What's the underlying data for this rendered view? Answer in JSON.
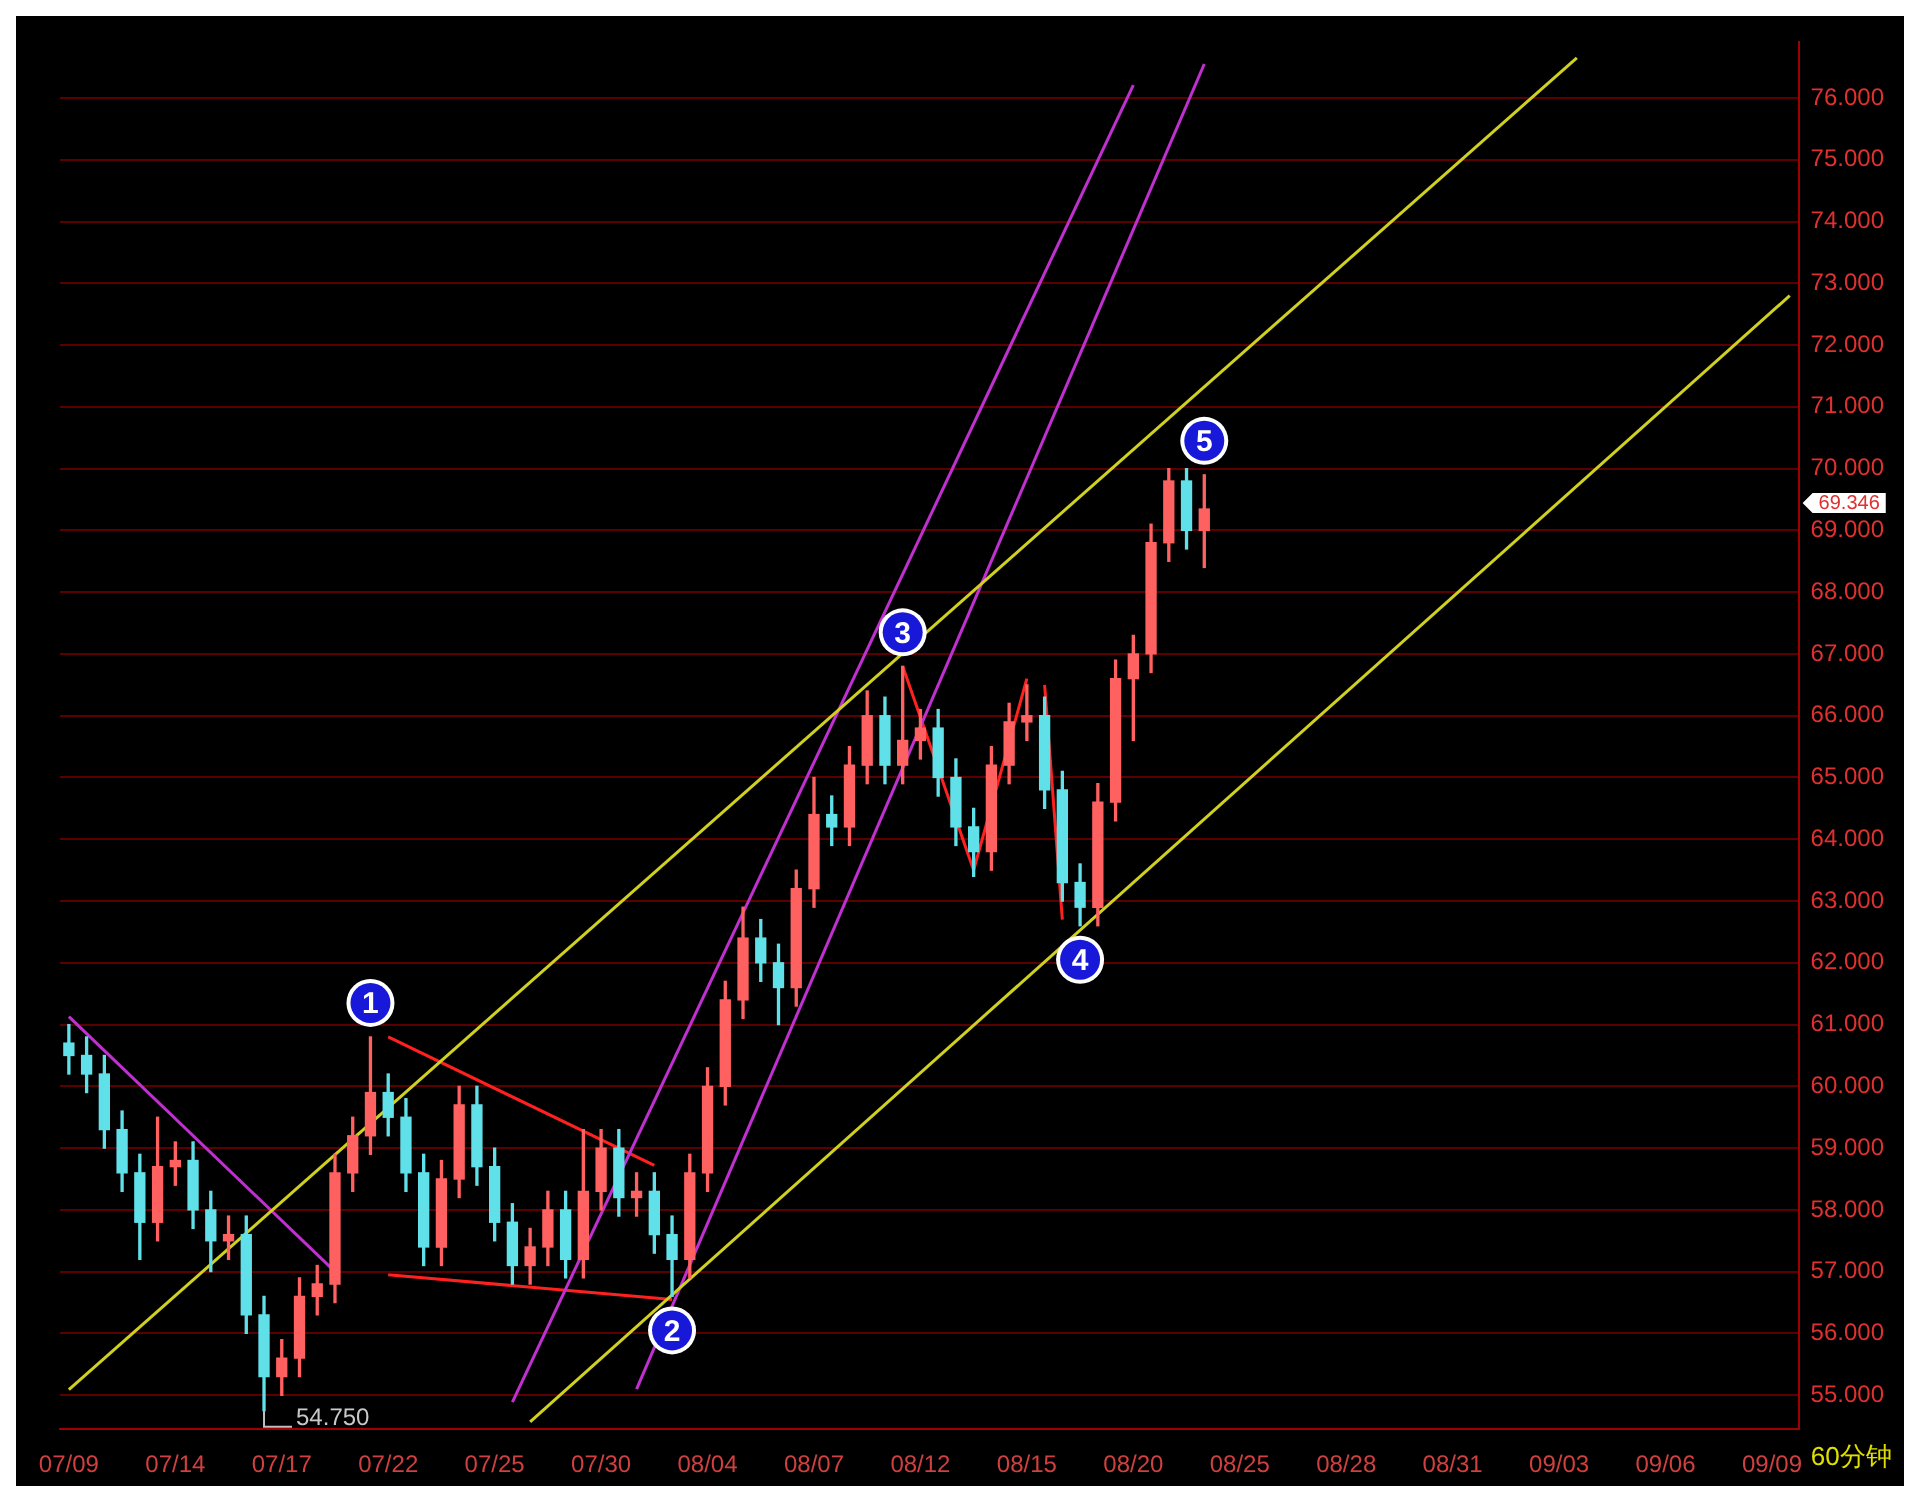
{
  "chart_data": {
    "type": "candlestick",
    "categories": [
      "07/09",
      null,
      null,
      null,
      null,
      null,
      "07/14",
      null,
      null,
      null,
      null,
      null,
      "07/17",
      null,
      null,
      null,
      null,
      null,
      "07/22",
      null,
      null,
      null,
      null,
      null,
      "07/25",
      null,
      null,
      null,
      null,
      null,
      "07/30",
      null,
      null,
      null,
      null,
      null,
      "08/04",
      null,
      null,
      null,
      null,
      null,
      "08/07",
      null,
      null,
      null,
      null,
      null,
      "08/12",
      null,
      null,
      null,
      null,
      null,
      "08/15",
      null,
      null,
      null,
      null,
      null,
      "08/20",
      null,
      null,
      null,
      null,
      null,
      "08/25",
      null,
      null,
      null,
      null,
      null,
      "08/28",
      null,
      null,
      null,
      null,
      null,
      "08/31",
      null,
      null,
      null,
      null,
      null,
      "09/03",
      null,
      null,
      null,
      null,
      null,
      "09/06",
      null,
      null,
      null,
      null,
      null,
      "09/09",
      null
    ],
    "ohlc": [
      [
        60.7,
        61.0,
        60.2,
        60.5
      ],
      [
        60.5,
        60.8,
        59.9,
        60.2
      ],
      [
        60.2,
        60.5,
        59.0,
        59.3
      ],
      [
        59.3,
        59.6,
        58.3,
        58.6
      ],
      [
        58.6,
        58.9,
        57.2,
        57.8
      ],
      [
        57.8,
        59.5,
        57.5,
        58.7
      ],
      [
        58.7,
        59.1,
        58.4,
        58.8
      ],
      [
        58.8,
        59.1,
        57.7,
        58.0
      ],
      [
        58.0,
        58.3,
        57.0,
        57.5
      ],
      [
        57.5,
        57.9,
        57.2,
        57.6
      ],
      [
        57.6,
        57.9,
        56.0,
        56.3
      ],
      [
        56.3,
        56.6,
        54.75,
        55.3
      ],
      [
        55.3,
        55.9,
        55.0,
        55.6
      ],
      [
        55.6,
        56.9,
        55.3,
        56.6
      ],
      [
        56.6,
        57.1,
        56.3,
        56.8
      ],
      [
        56.8,
        58.9,
        56.5,
        58.6
      ],
      [
        58.6,
        59.5,
        58.3,
        59.2
      ],
      [
        59.2,
        60.8,
        58.9,
        59.9
      ],
      [
        59.9,
        60.2,
        59.2,
        59.5
      ],
      [
        59.5,
        59.8,
        58.3,
        58.6
      ],
      [
        58.6,
        58.9,
        57.1,
        57.4
      ],
      [
        57.4,
        58.8,
        57.1,
        58.5
      ],
      [
        58.5,
        60.0,
        58.2,
        59.7
      ],
      [
        59.7,
        60.0,
        58.4,
        58.7
      ],
      [
        58.7,
        59.0,
        57.5,
        57.8
      ],
      [
        57.8,
        58.1,
        56.8,
        57.1
      ],
      [
        57.1,
        57.7,
        56.8,
        57.4
      ],
      [
        57.4,
        58.3,
        57.1,
        58.0
      ],
      [
        58.0,
        58.3,
        56.9,
        57.2
      ],
      [
        57.2,
        59.3,
        56.9,
        58.3
      ],
      [
        58.3,
        59.3,
        58.0,
        59.0
      ],
      [
        59.0,
        59.3,
        57.9,
        58.2
      ],
      [
        58.2,
        58.6,
        57.9,
        58.3
      ],
      [
        58.3,
        58.6,
        57.3,
        57.6
      ],
      [
        57.6,
        57.9,
        56.6,
        57.2
      ],
      [
        57.2,
        58.9,
        56.9,
        58.6
      ],
      [
        58.6,
        60.3,
        58.3,
        60.0
      ],
      [
        60.0,
        61.7,
        59.7,
        61.4
      ],
      [
        61.4,
        62.9,
        61.1,
        62.4
      ],
      [
        62.4,
        62.7,
        61.7,
        62.0
      ],
      [
        62.0,
        62.3,
        61.0,
        61.6
      ],
      [
        61.6,
        63.5,
        61.3,
        63.2
      ],
      [
        63.2,
        65.0,
        62.9,
        64.4
      ],
      [
        64.4,
        64.7,
        63.9,
        64.2
      ],
      [
        64.2,
        65.5,
        63.9,
        65.2
      ],
      [
        65.2,
        66.4,
        64.9,
        66.0
      ],
      [
        66.0,
        66.3,
        64.9,
        65.2
      ],
      [
        65.2,
        66.8,
        64.9,
        65.6
      ],
      [
        65.6,
        66.1,
        65.3,
        65.8
      ],
      [
        65.8,
        66.1,
        64.7,
        65.0
      ],
      [
        65.0,
        65.3,
        63.9,
        64.2
      ],
      [
        64.2,
        64.5,
        63.4,
        63.8
      ],
      [
        63.8,
        65.5,
        63.5,
        65.2
      ],
      [
        65.2,
        66.2,
        64.9,
        65.9
      ],
      [
        65.9,
        66.5,
        65.6,
        66.0
      ],
      [
        66.0,
        66.3,
        64.5,
        64.8
      ],
      [
        64.8,
        65.1,
        63.0,
        63.3
      ],
      [
        63.3,
        63.6,
        62.6,
        62.9
      ],
      [
        62.9,
        64.9,
        62.6,
        64.6
      ],
      [
        64.6,
        66.9,
        64.3,
        66.6
      ],
      [
        66.6,
        67.3,
        65.6,
        67.0
      ],
      [
        67.0,
        69.1,
        66.7,
        68.8
      ],
      [
        68.8,
        70.0,
        68.5,
        69.8
      ],
      [
        69.8,
        70.0,
        68.7,
        69.0
      ],
      [
        69.0,
        69.9,
        68.4,
        69.346
      ],
      null,
      null,
      null,
      null,
      null,
      null,
      null,
      null,
      null,
      null,
      null,
      null,
      null,
      null,
      null,
      null,
      null,
      null,
      null,
      null,
      null,
      null,
      null,
      null,
      null,
      null,
      null,
      null,
      null,
      null,
      null,
      null,
      null
    ],
    "colors": [
      "#60e0e8",
      "#60e0e8",
      "#60e0e8",
      "#60e0e8",
      "#60e0e8",
      "#ff6060",
      "#ff6060",
      "#60e0e8",
      "#60e0e8",
      "#ff6060",
      "#60e0e8",
      "#60e0e8",
      "#ff6060",
      "#ff6060",
      "#ff6060",
      "#ff6060",
      "#ff6060",
      "#ff6060",
      "#60e0e8",
      "#60e0e8",
      "#60e0e8",
      "#ff6060",
      "#ff6060",
      "#60e0e8",
      "#60e0e8",
      "#60e0e8",
      "#ff6060",
      "#ff6060",
      "#60e0e8",
      "#ff6060",
      "#ff6060",
      "#60e0e8",
      "#ff6060",
      "#60e0e8",
      "#60e0e8",
      "#ff6060",
      "#ff6060",
      "#ff6060",
      "#ff6060",
      "#60e0e8",
      "#60e0e8",
      "#ff6060",
      "#ff6060",
      "#60e0e8",
      "#ff6060",
      "#ff6060",
      "#60e0e8",
      "#ff6060",
      "#ff6060",
      "#60e0e8",
      "#60e0e8",
      "#60e0e8",
      "#ff6060",
      "#ff6060",
      "#ff6060",
      "#60e0e8",
      "#60e0e8",
      "#60e0e8",
      "#ff6060",
      "#ff6060",
      "#ff6060",
      "#ff6060",
      "#ff6060",
      "#60e0e8",
      "#ff6060",
      null,
      null,
      null,
      null,
      null,
      null,
      null,
      null,
      null,
      null,
      null,
      null,
      null,
      null,
      null,
      null,
      null,
      null,
      null,
      null,
      null,
      null,
      null,
      null,
      null,
      null,
      null,
      null,
      null,
      null,
      null,
      null,
      null
    ],
    "value_labels": [
      null,
      null,
      null,
      null,
      null,
      null,
      null,
      null,
      null,
      null,
      null,
      null,
      null,
      null,
      null,
      null,
      null,
      "1",
      null,
      null,
      null,
      null,
      null,
      null,
      null,
      null,
      null,
      null,
      null,
      null,
      null,
      null,
      null,
      null,
      "2",
      null,
      null,
      null,
      null,
      null,
      null,
      null,
      null,
      null,
      null,
      null,
      null,
      "3",
      null,
      null,
      null,
      null,
      null,
      null,
      null,
      null,
      null,
      "4",
      null,
      null,
      null,
      null,
      null,
      null,
      "5",
      null,
      null,
      null,
      null,
      null,
      null,
      null,
      null,
      null,
      null,
      null,
      null,
      null,
      null,
      null,
      null,
      null,
      null,
      null,
      null,
      null,
      null,
      null,
      null,
      null,
      null,
      null,
      null,
      null,
      null,
      null,
      null,
      null
    ],
    "series": [
      {
        "type": "line",
        "color": "#d0d020",
        "values": [
          55.09,
          null,
          null,
          null,
          null,
          null,
          null,
          null,
          null,
          null,
          null,
          null,
          null,
          null,
          null,
          null,
          null,
          null,
          null,
          null,
          null,
          null,
          null,
          null,
          null,
          null,
          null,
          null,
          null,
          null,
          null,
          null,
          null,
          null,
          null,
          null,
          null,
          null,
          null,
          null,
          null,
          null,
          null,
          null,
          null,
          null,
          null,
          null,
          null,
          null,
          null,
          null,
          null,
          null,
          null,
          null,
          null,
          null,
          null,
          null,
          null,
          null,
          null,
          null,
          null,
          null,
          null,
          null,
          null,
          null,
          null,
          null,
          null,
          null,
          null,
          null,
          null,
          null,
          null,
          null,
          null,
          null,
          null,
          null,
          null,
          76.65,
          null,
          null,
          null,
          null,
          null,
          null,
          null,
          null,
          null,
          null,
          null,
          null
        ]
      },
      {
        "type": "line",
        "color": "#d0d020",
        "values": [
          null,
          null,
          null,
          null,
          null,
          null,
          null,
          null,
          null,
          null,
          null,
          null,
          null,
          null,
          null,
          null,
          null,
          null,
          null,
          null,
          null,
          null,
          null,
          null,
          null,
          null,
          54.57,
          null,
          null,
          null,
          null,
          null,
          null,
          null,
          null,
          null,
          null,
          null,
          null,
          null,
          null,
          null,
          null,
          null,
          null,
          null,
          null,
          null,
          null,
          null,
          null,
          null,
          null,
          null,
          null,
          null,
          null,
          null,
          null,
          null,
          null,
          null,
          null,
          null,
          null,
          null,
          null,
          null,
          null,
          null,
          null,
          null,
          null,
          null,
          null,
          null,
          null,
          null,
          null,
          null,
          null,
          null,
          null,
          null,
          null,
          null,
          null,
          null,
          null,
          null,
          null,
          null,
          null,
          null,
          null,
          null,
          null,
          72.8
        ]
      },
      {
        "type": "line",
        "color": "#c030d0",
        "values": [
          null,
          null,
          null,
          null,
          null,
          null,
          null,
          null,
          null,
          null,
          null,
          null,
          null,
          null,
          null,
          null,
          null,
          null,
          null,
          null,
          null,
          null,
          null,
          null,
          null,
          54.89,
          null,
          null,
          null,
          null,
          null,
          null,
          null,
          null,
          null,
          null,
          null,
          null,
          null,
          null,
          null,
          null,
          null,
          null,
          null,
          null,
          null,
          null,
          null,
          null,
          null,
          null,
          null,
          null,
          null,
          null,
          null,
          null,
          null,
          null,
          76.21,
          null,
          null,
          null,
          null,
          null,
          null,
          null,
          null,
          null,
          null,
          null,
          null,
          null,
          null,
          null,
          null,
          null,
          null,
          null,
          null,
          null,
          null,
          null,
          null,
          null,
          null,
          null,
          null,
          null,
          null,
          null,
          null,
          null,
          null,
          null,
          null,
          null
        ]
      },
      {
        "type": "line",
        "color": "#c030d0",
        "values": [
          null,
          null,
          null,
          null,
          null,
          null,
          null,
          null,
          null,
          null,
          null,
          null,
          null,
          null,
          null,
          null,
          null,
          null,
          null,
          null,
          null,
          null,
          null,
          null,
          null,
          null,
          null,
          null,
          null,
          null,
          null,
          null,
          55.1,
          null,
          null,
          null,
          null,
          null,
          null,
          null,
          null,
          null,
          null,
          null,
          null,
          null,
          null,
          null,
          null,
          null,
          null,
          null,
          null,
          null,
          null,
          null,
          null,
          null,
          null,
          null,
          null,
          null,
          null,
          null,
          76.55,
          null,
          null,
          null,
          null,
          null,
          null,
          null,
          null,
          null,
          null,
          null,
          null,
          null,
          null,
          null,
          null,
          null,
          null,
          null,
          null,
          null,
          null,
          null,
          null,
          null,
          null,
          null,
          null,
          null,
          null,
          null,
          null,
          null
        ]
      },
      {
        "type": "line",
        "color": "#c030d0",
        "values": [
          61.13,
          null,
          null,
          null,
          null,
          null,
          null,
          null,
          null,
          null,
          null,
          null,
          null,
          null,
          null,
          57.0,
          null,
          null,
          null,
          null,
          null,
          null,
          null,
          null,
          null,
          null,
          null,
          null,
          null,
          null,
          null,
          null,
          null,
          null,
          null,
          null,
          null,
          null,
          null,
          null,
          null,
          null,
          null,
          null,
          null,
          null,
          null,
          null,
          null,
          null,
          null,
          null,
          null,
          null,
          null,
          null,
          null,
          null,
          null,
          null,
          null,
          null,
          null,
          null,
          null,
          null,
          null,
          null,
          null,
          null,
          null,
          null,
          null,
          null,
          null,
          null,
          null,
          null,
          null,
          null,
          null,
          null,
          null,
          null,
          null,
          null,
          null,
          null,
          null,
          null,
          null,
          null,
          null,
          null,
          null,
          null,
          null,
          null
        ]
      },
      {
        "type": "line",
        "color": "#ff2020",
        "values": [
          null,
          null,
          null,
          null,
          null,
          null,
          null,
          null,
          null,
          null,
          null,
          null,
          null,
          null,
          null,
          null,
          null,
          null,
          60.8,
          null,
          null,
          null,
          null,
          null,
          null,
          null,
          null,
          null,
          null,
          null,
          null,
          null,
          null,
          58.72,
          null,
          null,
          null,
          null,
          null,
          null,
          null,
          null,
          null,
          null,
          null,
          null,
          null,
          null,
          null,
          null,
          null,
          null,
          null,
          null,
          null,
          null,
          null,
          null,
          null,
          null,
          null,
          null,
          null,
          null,
          null,
          null,
          null,
          null,
          null,
          null,
          null,
          null,
          null,
          null,
          null,
          null,
          null,
          null,
          null,
          null,
          null,
          null,
          null,
          null,
          null,
          null,
          null,
          null,
          null,
          null,
          null,
          null,
          null,
          null,
          null,
          null,
          null,
          null
        ]
      },
      {
        "type": "line",
        "color": "#ff2020",
        "values": [
          null,
          null,
          null,
          null,
          null,
          null,
          null,
          null,
          null,
          null,
          null,
          null,
          null,
          null,
          null,
          null,
          null,
          null,
          56.95,
          null,
          null,
          null,
          null,
          null,
          null,
          null,
          null,
          null,
          null,
          null,
          null,
          null,
          null,
          null,
          56.55,
          null,
          null,
          null,
          null,
          null,
          null,
          null,
          null,
          null,
          null,
          null,
          null,
          null,
          null,
          null,
          null,
          null,
          null,
          null,
          null,
          null,
          null,
          null,
          null,
          null,
          null,
          null,
          null,
          null,
          null,
          null,
          null,
          null,
          null,
          null,
          null,
          null,
          null,
          null,
          null,
          null,
          null,
          null,
          null,
          null,
          null,
          null,
          null,
          null,
          null,
          null,
          null,
          null,
          null,
          null,
          null,
          null,
          null,
          null,
          null,
          null,
          null,
          null
        ]
      },
      {
        "type": "line",
        "color": "#ff2020",
        "values": [
          null,
          null,
          null,
          null,
          null,
          null,
          null,
          null,
          null,
          null,
          null,
          null,
          null,
          null,
          null,
          null,
          null,
          null,
          null,
          null,
          null,
          null,
          null,
          null,
          null,
          null,
          null,
          null,
          null,
          null,
          null,
          null,
          null,
          null,
          null,
          null,
          null,
          null,
          null,
          null,
          null,
          null,
          null,
          null,
          null,
          null,
          null,
          66.8,
          null,
          null,
          null,
          63.5,
          null,
          null,
          66.6,
          null,
          null,
          null,
          null,
          null,
          null,
          null,
          null,
          null,
          null,
          null,
          null,
          null,
          null,
          null,
          null,
          null,
          null,
          null,
          null,
          null,
          null,
          null,
          null,
          null,
          null,
          null,
          null,
          null,
          null,
          null,
          null,
          null,
          null,
          null,
          null,
          null,
          null,
          null,
          null,
          null,
          null,
          null
        ]
      },
      {
        "type": "line",
        "color": "#ff2020",
        "values": [
          null,
          null,
          null,
          null,
          null,
          null,
          null,
          null,
          null,
          null,
          null,
          null,
          null,
          null,
          null,
          null,
          null,
          null,
          null,
          null,
          null,
          null,
          null,
          null,
          null,
          null,
          null,
          null,
          null,
          null,
          null,
          null,
          null,
          null,
          null,
          null,
          null,
          null,
          null,
          null,
          null,
          null,
          null,
          null,
          null,
          null,
          null,
          null,
          null,
          null,
          null,
          null,
          null,
          null,
          null,
          66.5,
          62.7,
          null,
          null,
          null,
          null,
          null,
          null,
          null,
          null,
          null,
          null,
          null,
          null,
          null,
          null,
          null,
          null,
          null,
          null,
          null,
          null,
          null,
          null,
          null,
          null,
          null,
          null,
          null,
          null,
          null,
          null,
          null,
          null,
          null,
          null,
          null,
          null,
          null,
          null,
          null,
          null,
          null
        ]
      }
    ],
    "ylim": [
      54.45,
      76.9
    ],
    "yticks": [
      {
        "value": 55,
        "label": "55.000"
      },
      {
        "value": 56,
        "label": "56.000"
      },
      {
        "value": 57,
        "label": "57.000"
      },
      {
        "value": 58,
        "label": "58.000"
      },
      {
        "value": 59,
        "label": "59.000"
      },
      {
        "value": 60,
        "label": "60.000"
      },
      {
        "value": 61,
        "label": "61.000"
      },
      {
        "value": 62,
        "label": "62.000"
      },
      {
        "value": 63,
        "label": "63.000"
      },
      {
        "value": 64,
        "label": "64.000"
      },
      {
        "value": 65,
        "label": "65.000"
      },
      {
        "value": 66,
        "label": "66.000"
      },
      {
        "value": 67,
        "label": "67.000"
      },
      {
        "value": 68,
        "label": "68.000"
      },
      {
        "value": 69,
        "label": "69.000"
      },
      {
        "value": 70,
        "label": "70.000"
      },
      {
        "value": 71,
        "label": "71.000"
      },
      {
        "value": 72,
        "label": "72.000"
      },
      {
        "value": 73,
        "label": "73.000"
      },
      {
        "value": 74,
        "label": "74.000"
      },
      {
        "value": 75,
        "label": "75.000"
      },
      {
        "value": 76,
        "label": "76.000"
      }
    ],
    "grid": "y",
    "annotations": [
      "54.750",
      "69.346",
      "60分钟"
    ]
  }
}
